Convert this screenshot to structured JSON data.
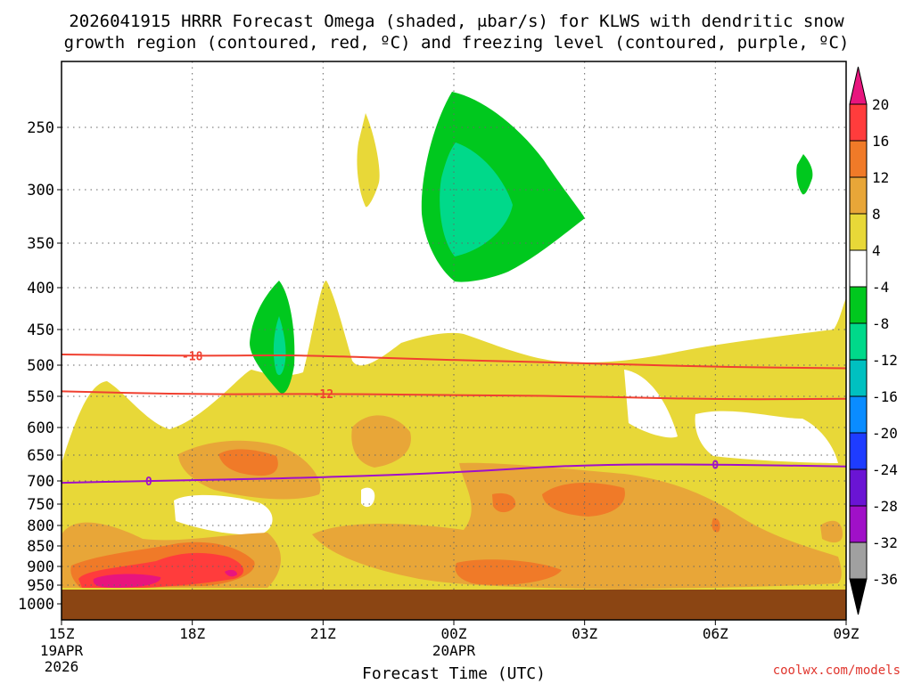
{
  "chart_data": {
    "type": "contour",
    "title_line1": "2026041915 HRRR Forecast Omega (shaded, μbar/s) for KLWS with dendritic snow",
    "title_line2": "growth region (contoured, red, ºC) and freezing level (contoured, purple, ºC)",
    "xlabel": "Forecast Time (UTC)",
    "ylabel": "",
    "credit": "coolwx.com/models",
    "x_hours": [
      0,
      3,
      6,
      9,
      12,
      15,
      18
    ],
    "x_ticks": [
      {
        "label": "15Z",
        "sub": [
          "19APR",
          "2026"
        ]
      },
      {
        "label": "18Z",
        "sub": []
      },
      {
        "label": "21Z",
        "sub": []
      },
      {
        "label": "00Z",
        "sub": [
          "20APR"
        ]
      },
      {
        "label": "03Z",
        "sub": []
      },
      {
        "label": "06Z",
        "sub": []
      },
      {
        "label": "09Z",
        "sub": []
      }
    ],
    "y_ticks": [
      "250",
      "300",
      "350",
      "400",
      "450",
      "500",
      "550",
      "600",
      "650",
      "700",
      "750",
      "800",
      "850",
      "900",
      "950",
      "1000"
    ],
    "pressure_levels": [
      250,
      300,
      350,
      400,
      450,
      500,
      550,
      600,
      650,
      700,
      750,
      800,
      850,
      900,
      950,
      1000
    ],
    "surface_pressure_hpa": 965,
    "colorbar_labels": [
      "20",
      "16",
      "12",
      "8",
      "4",
      "-4",
      "-8",
      "-12",
      "-16",
      "-20",
      "-24",
      "-28",
      "-32",
      "-36"
    ],
    "colorbar_colors": [
      "#ff3c3c",
      "#f07a28",
      "#e8a638",
      "#e8d838",
      "#ffffff",
      "#00c81e",
      "#00d98a",
      "#00c0c0",
      "#0a8cff",
      "#1e3cff",
      "#6a14d4",
      "#a010c8",
      "#a0a0a0"
    ],
    "colorbar_top_color": "#e8157e",
    "colorbar_bottom_color": "#000000",
    "contours": [
      {
        "name": "dgz-minus-18",
        "label": "-18",
        "color": "#f04030",
        "points": [
          [
            0,
            485
          ],
          [
            3,
            487
          ],
          [
            5,
            486
          ],
          [
            6,
            487
          ],
          [
            9,
            493
          ],
          [
            12,
            497
          ],
          [
            15,
            503
          ],
          [
            18,
            505
          ]
        ]
      },
      {
        "name": "dgz-minus-12",
        "label": "-12",
        "color": "#f04030",
        "points": [
          [
            0,
            542
          ],
          [
            3,
            547
          ],
          [
            6,
            546
          ],
          [
            9,
            548
          ],
          [
            12,
            550
          ],
          [
            15,
            555
          ],
          [
            18,
            554
          ]
        ]
      },
      {
        "name": "freezing-level-0",
        "label": "0",
        "color": "#a010c8",
        "points": [
          [
            0,
            704
          ],
          [
            2,
            700
          ],
          [
            4,
            697
          ],
          [
            6,
            693
          ],
          [
            9,
            684
          ],
          [
            12,
            668
          ],
          [
            15,
            668
          ],
          [
            18,
            672
          ]
        ]
      }
    ]
  }
}
